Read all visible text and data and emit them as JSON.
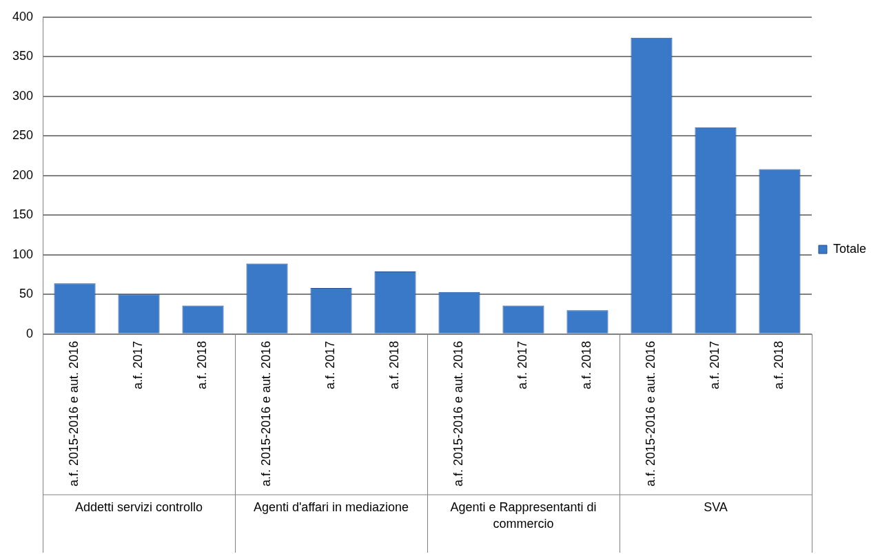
{
  "chart_data": {
    "type": "bar",
    "categories": [
      "a.f. 2015-2016 e aut. 2016",
      "a.f. 2017",
      "a.f. 2018",
      "a.f. 2015-2016 e aut. 2016",
      "a.f. 2017",
      "a.f. 2018",
      "a.f. 2015-2016 e aut. 2016",
      "a.f. 2017",
      "a.f. 2018",
      "a.f. 2015-2016 e aut. 2016",
      "a.f. 2017",
      "a.f. 2018"
    ],
    "series": [
      {
        "name": "Totale",
        "color": "#3a78c8",
        "values": [
          64,
          50,
          36,
          89,
          58,
          79,
          53,
          36,
          30,
          374,
          261,
          208
        ]
      }
    ],
    "ylim": [
      0,
      400
    ],
    "yticks": [
      0,
      50,
      100,
      150,
      200,
      250,
      300,
      350,
      400
    ],
    "grid": "y",
    "legend": "right",
    "annotations": [
      "Addetti servizi controllo",
      "Agenti d'affari in mediazione",
      "Agenti e Rappresentanti di commercio",
      "SVA"
    ]
  }
}
